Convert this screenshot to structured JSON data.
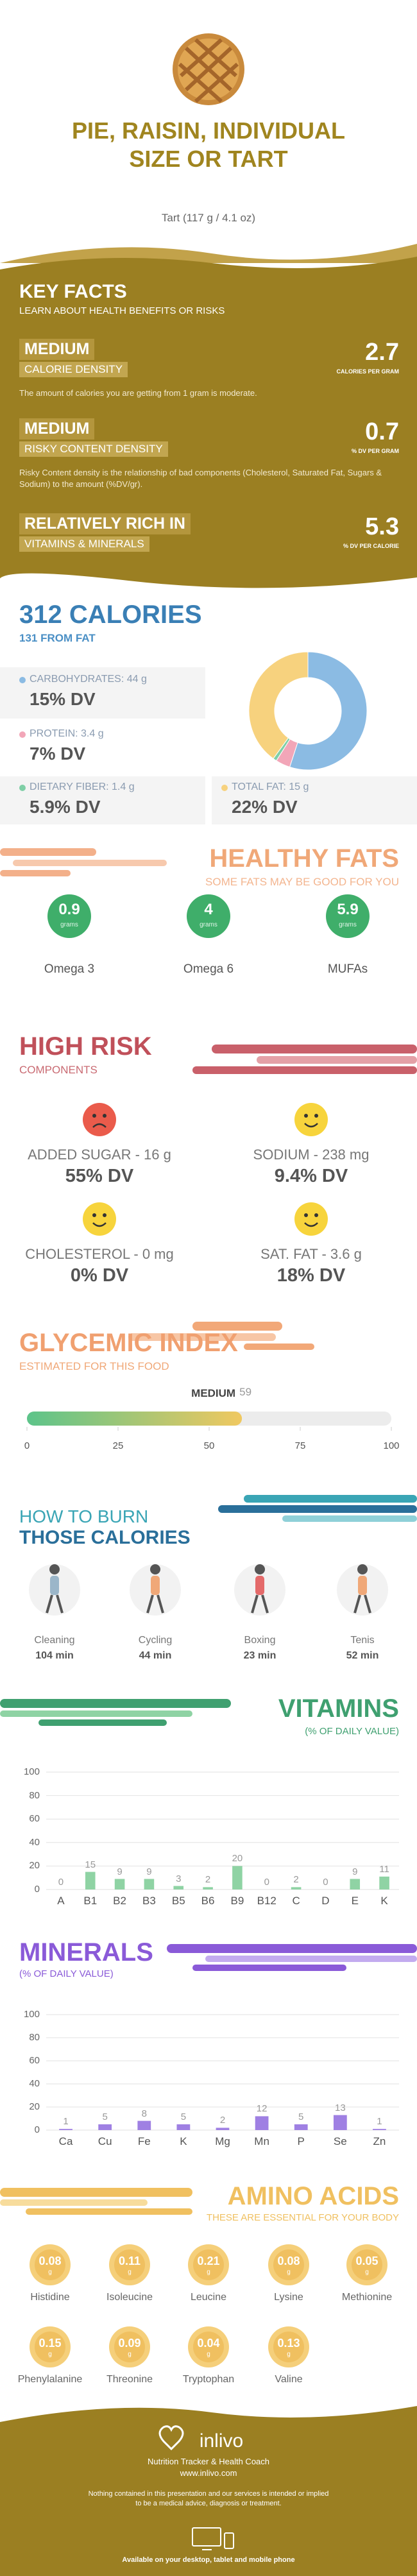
{
  "header": {
    "title": "PIE, RAISIN, INDIVIDUAL SIZE OR TART",
    "serving": "Tart (117 g / 4.1 oz)"
  },
  "key_facts": {
    "title": "KEY FACTS",
    "subtitle": "LEARN ABOUT HEALTH BENEFITS OR RISKS",
    "items": [
      {
        "label": "MEDIUM",
        "sublabel": "CALORIE DENSITY",
        "value": 2.7,
        "unit": "CALORIES PER GRAM",
        "description": "The amount of calories you are getting from 1 gram is moderate."
      },
      {
        "label": "MEDIUM",
        "sublabel": "RISKY CONTENT DENSITY",
        "value": 0.7,
        "unit": "% DV PER GRAM",
        "description": "Risky Content density is the relationship of bad components (Cholesterol, Saturated Fat, Sugars & Sodium) to the amount (%DV/gr)."
      },
      {
        "label": "RELATIVELY RICH  IN",
        "sublabel": "VITAMINS & MINERALS",
        "value": 5.3,
        "unit": "% DV PER CALORIE"
      }
    ]
  },
  "calories": {
    "title": "312 CALORIES",
    "subtitle": "131 FROM FAT",
    "nutrients": [
      {
        "name": "CARBOHYDRATES: 44 g",
        "dv": "15% DV",
        "color": "#8bbbe3"
      },
      {
        "name": "PROTEIN: 3.4 g",
        "dv": "7% DV",
        "color": "#f2a6b8"
      },
      {
        "name": "DIETARY FIBER: 1.4 g",
        "dv": "5.9% DV",
        "color": "#7fcfa6"
      },
      {
        "name": "TOTAL FAT: 15 g",
        "dv": "22% DV",
        "color": "#f7d27e"
      }
    ],
    "donut": {
      "type": "pie",
      "values": [
        55,
        4,
        1,
        40
      ],
      "colors": [
        "#8bbbe3",
        "#f2a6b8",
        "#7fcfa6",
        "#f7d27e"
      ]
    }
  },
  "healthy_fats": {
    "title": "HEALTHY FATS",
    "subtitle": "SOME FATS MAY BE GOOD FOR YOU",
    "unit": "grams",
    "items": [
      {
        "name": "Omega 3",
        "value": 0.9
      },
      {
        "name": "Omega 6",
        "value": 4
      },
      {
        "name": "MUFAs",
        "value": 5.9
      }
    ]
  },
  "high_risk": {
    "title": "HIGH RISK",
    "subtitle": "COMPONENTS",
    "items": [
      {
        "name": "ADDED SUGAR - 16 g",
        "dv": "55% DV"
      },
      {
        "name": "SODIUM - 238 mg",
        "dv": "9.4% DV"
      },
      {
        "name": "CHOLESTEROL - 0 mg",
        "dv": "0% DV"
      },
      {
        "name": "SAT. FAT - 3.6 g",
        "dv": "18% DV"
      }
    ]
  },
  "glycemic": {
    "title": "GLYCEMIC INDEX",
    "subtitle": "ESTIMATED FOR THIS FOOD",
    "level": "MEDIUM",
    "value": 59,
    "xlim": [
      0,
      100
    ],
    "xticks": [
      0,
      25,
      50,
      75,
      100
    ]
  },
  "burn": {
    "title_line1": "HOW TO BURN",
    "title_line2": "THOSE CALORIES",
    "items": [
      {
        "name": "Cleaning",
        "time": "104 min"
      },
      {
        "name": "Cycling",
        "time": "44 min"
      },
      {
        "name": "Boxing",
        "time": "23 min"
      },
      {
        "name": "Tenis",
        "time": "52 min"
      }
    ]
  },
  "vitamins": {
    "type": "bar",
    "title": "VITAMINS",
    "subtitle": "(% OF DAILY VALUE)",
    "color": "#8fd3a4",
    "categories": [
      "A",
      "B1",
      "B2",
      "B3",
      "B5",
      "B6",
      "B9",
      "B12",
      "C",
      "D",
      "E",
      "K"
    ],
    "values": [
      0,
      15,
      9,
      9,
      3,
      2,
      20,
      0,
      2,
      0,
      9,
      11
    ],
    "ylim": [
      0,
      100
    ],
    "yticks": [
      0,
      20,
      40,
      60,
      80,
      100
    ],
    "grid": true
  },
  "minerals": {
    "type": "bar",
    "title": "MINERALS",
    "subtitle": "(% OF DAILY VALUE)",
    "color": "#9f80e3",
    "categories": [
      "Ca",
      "Cu",
      "Fe",
      "K",
      "Mg",
      "Mn",
      "P",
      "Se",
      "Zn"
    ],
    "values": [
      1,
      5,
      8,
      5,
      2,
      12,
      5,
      13,
      1
    ],
    "ylim": [
      0,
      100
    ],
    "yticks": [
      0,
      20,
      40,
      60,
      80,
      100
    ],
    "grid": true
  },
  "amino_acids": {
    "title": "AMINO ACIDS",
    "subtitle": "THESE ARE ESSENTIAL FOR YOUR BODY",
    "unit": "g",
    "items": [
      {
        "name": "Histidine",
        "value": 0.08
      },
      {
        "name": "Isoleucine",
        "value": 0.11
      },
      {
        "name": "Leucine",
        "value": 0.21
      },
      {
        "name": "Lysine",
        "value": 0.08
      },
      {
        "name": "Methionine",
        "value": 0.05
      },
      {
        "name": "Phenylalanine",
        "value": 0.15
      },
      {
        "name": "Threonine",
        "value": 0.09
      },
      {
        "name": "Tryptophan",
        "value": 0.04
      },
      {
        "name": "Valine",
        "value": 0.13
      }
    ]
  },
  "footer": {
    "brand": "inlivo",
    "tagline": "Nutrition Tracker & Health Coach",
    "url": "www.inlivo.com",
    "disclaimer": "Nothing contained in this presentation and our services is intended or implied to be a medical advice, diagnosis or treatment.",
    "available": "Available on your desktop, tablet and mobile phone"
  }
}
